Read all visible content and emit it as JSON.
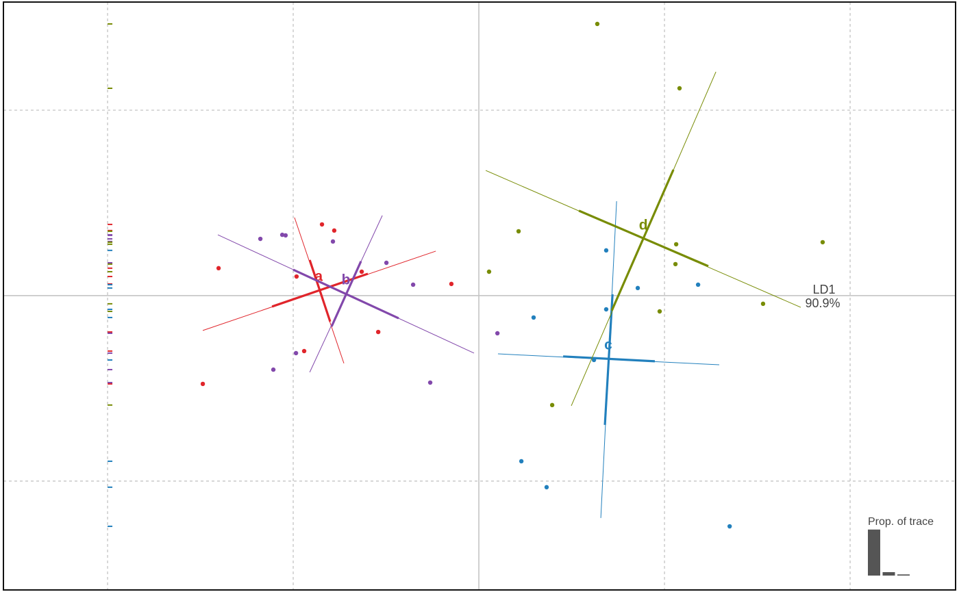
{
  "chart_data": [
    {
      "type": "scatter",
      "xlim": [
        -2.561,
        2.568
      ],
      "ylim": [
        -1.587,
        1.583
      ],
      "xticks": [
        -2,
        -1,
        0,
        1,
        2
      ],
      "yticks": [
        -1,
        0,
        1
      ],
      "grid": true,
      "xlabel": "LD1",
      "xlabel_variance": "90.9%",
      "series": [
        {
          "name": "a",
          "color": "#e0252b",
          "x": [
            -0.845,
            -0.779,
            -1.402,
            -0.982,
            -0.631,
            -0.148,
            -0.542,
            -0.941,
            -1.487
          ],
          "y": [
            0.384,
            0.351,
            0.148,
            0.103,
            0.129,
            0.063,
            -0.196,
            -0.299,
            -0.476
          ],
          "center": [
            -0.863,
            0.1
          ],
          "outer_lines": [
            [
              -1.487,
              -0.188,
              -0.232,
              0.24
            ],
            [
              -0.993,
              0.421,
              -0.727,
              -0.365
            ]
          ],
          "inner_lines": [
            [
              -1.114,
              -0.059,
              -0.598,
              0.118
            ],
            [
              -0.911,
              0.192,
              -0.801,
              -0.14
            ]
          ]
        },
        {
          "name": "b",
          "color": "#8248ab",
          "x": [
            -1.177,
            -1.059,
            -1.041,
            -0.786,
            -0.498,
            -0.354,
            -0.985,
            -1.107,
            -0.262,
            0.1
          ],
          "y": [
            0.306,
            0.328,
            0.325,
            0.292,
            0.177,
            0.059,
            -0.31,
            -0.399,
            -0.469,
            -0.203
          ],
          "center": [
            -0.716,
            0.081
          ],
          "outer_lines": [
            [
              -1.406,
              0.328,
              -0.026,
              -0.31
            ],
            [
              -0.52,
              0.432,
              -0.911,
              -0.413
            ]
          ],
          "inner_lines": [
            [
              -1.0,
              0.14,
              -0.432,
              -0.122
            ],
            [
              -0.635,
              0.185,
              -0.793,
              -0.166
            ]
          ]
        },
        {
          "name": "c",
          "color": "#2280bd",
          "x": [
            0.686,
            0.856,
            1.181,
            0.686,
            0.295,
            0.62,
            0.229,
            0.365,
            1.351
          ],
          "y": [
            0.244,
            0.041,
            0.059,
            -0.074,
            -0.118,
            -0.347,
            -0.893,
            -1.033,
            -1.244
          ],
          "center": [
            0.697,
            -0.269
          ],
          "outer_lines": [
            [
              0.103,
              -0.314,
              1.295,
              -0.373
            ],
            [
              0.742,
              0.509,
              0.657,
              -1.199
            ]
          ],
          "inner_lines": [
            [
              0.454,
              -0.328,
              0.948,
              -0.354
            ],
            [
              0.72,
              0.007,
              0.679,
              -0.697
            ]
          ]
        },
        {
          "name": "d",
          "color": "#788c05",
          "x": [
            0.638,
            1.081,
            0.214,
            0.055,
            1.063,
            1.059,
            1.852,
            0.974,
            1.531,
            0.395
          ],
          "y": [
            1.465,
            1.118,
            0.347,
            0.129,
            0.277,
            0.17,
            0.288,
            -0.085,
            -0.044,
            -0.59
          ],
          "center": [
            0.886,
            0.376
          ],
          "outer_lines": [
            [
              0.037,
              0.675,
              1.734,
              -0.063
            ],
            [
              1.277,
              1.207,
              0.498,
              -0.594
            ]
          ],
          "inner_lines": [
            [
              0.539,
              0.458,
              1.236,
              0.159
            ],
            [
              1.048,
              0.679,
              0.716,
              -0.081
            ]
          ]
        }
      ]
    },
    {
      "type": "bar",
      "title": "Prop. of trace",
      "values": [
        0.909,
        0.068,
        0.023
      ],
      "ylim": [
        0,
        1
      ],
      "color": "#555555"
    }
  ]
}
